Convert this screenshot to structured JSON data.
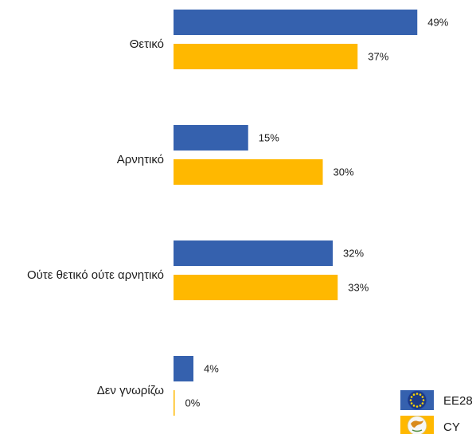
{
  "chart_data": {
    "type": "bar",
    "orientation": "horizontal",
    "categories": [
      "Θετικό",
      "Αρνητικό",
      "Ούτε θετικό ούτε αρνητικό",
      "Δεν γνωρίζω"
    ],
    "series": [
      {
        "name": "EE28",
        "values": [
          49,
          15,
          32,
          4
        ],
        "labels": [
          "49%",
          "15%",
          "32%",
          "4%"
        ],
        "color": "#3561AE"
      },
      {
        "name": "CY",
        "values": [
          37,
          30,
          33,
          0
        ],
        "labels": [
          "37%",
          "30%",
          "33%",
          "0%"
        ],
        "color": "#FFB800"
      }
    ],
    "xlim": [
      0,
      50
    ],
    "grid": false,
    "legend": "bottom-right",
    "title": "",
    "xlabel": "",
    "ylabel": ""
  },
  "legend": {
    "icons": [
      "eu-flag-icon",
      "cyprus-flag-icon"
    ]
  }
}
